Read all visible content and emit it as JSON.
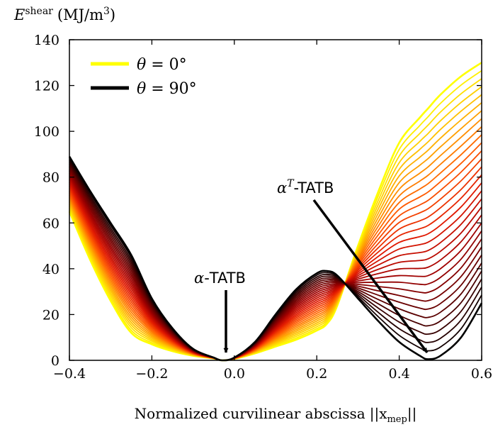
{
  "chart_data": {
    "type": "line",
    "title": "",
    "ylabel": {
      "symbol": "E",
      "superscript": "shear",
      "units_prefix": "(MJ/m",
      "units_exp": "3",
      "units_suffix": ")"
    },
    "xlabel": {
      "text": "Normalized curvilinear abscissa",
      "math": "||x",
      "math_sub": "mep",
      "math_end": "||"
    },
    "xlim": [
      -0.4,
      0.6
    ],
    "ylim": [
      0,
      140
    ],
    "xticks": [
      -0.4,
      -0.2,
      0.0,
      0.2,
      0.4,
      0.6
    ],
    "xtick_labels": [
      "−0.4",
      "−0.2",
      "0.0",
      "0.2",
      "0.4",
      "0.6"
    ],
    "yticks": [
      0,
      20,
      40,
      60,
      80,
      100,
      120,
      140
    ],
    "ytick_labels": [
      "0",
      "20",
      "40",
      "60",
      "80",
      "100",
      "120",
      "140"
    ],
    "grid": false,
    "legend_position": "top-left",
    "legend": [
      {
        "label_math": "θ",
        "label_rest": " = 0°",
        "color": "#ffff00"
      },
      {
        "label_math": "θ",
        "label_rest": " = 90°",
        "color": "#000000"
      }
    ],
    "series_count": 31,
    "theta_range_deg": [
      0,
      90
    ],
    "colormap": [
      "#ffff00",
      "#ffb000",
      "#ff5a00",
      "#e01800",
      "#a00000",
      "#5a0000",
      "#000000"
    ],
    "x": [
      -0.4,
      -0.35,
      -0.3,
      -0.25,
      -0.2,
      -0.15,
      -0.1,
      -0.05,
      -0.03,
      0.0,
      0.05,
      0.1,
      0.15,
      0.2,
      0.225,
      0.25,
      0.3,
      0.35,
      0.4,
      0.45,
      0.47,
      0.5,
      0.55,
      0.6
    ],
    "series_theta0": [
      65,
      44,
      26,
      12,
      7,
      4,
      2,
      0.8,
      0,
      0.6,
      3,
      6,
      9,
      13,
      16,
      24,
      50,
      74,
      95,
      106,
      110,
      116,
      124,
      130
    ],
    "series_theta90": [
      89,
      74,
      60,
      46,
      27,
      14,
      5,
      1.2,
      0,
      1.2,
      8,
      20,
      31,
      38,
      39,
      37,
      27,
      17,
      8,
      2,
      0.5,
      2,
      10,
      25
    ],
    "annotations": [
      {
        "label_math": "α",
        "label_rest": "-TATB",
        "x": -0.03,
        "y": 0
      },
      {
        "label_math": "α",
        "label_sup": "T",
        "label_rest": "-TATB",
        "x": 0.47,
        "y": 0.5
      }
    ]
  }
}
